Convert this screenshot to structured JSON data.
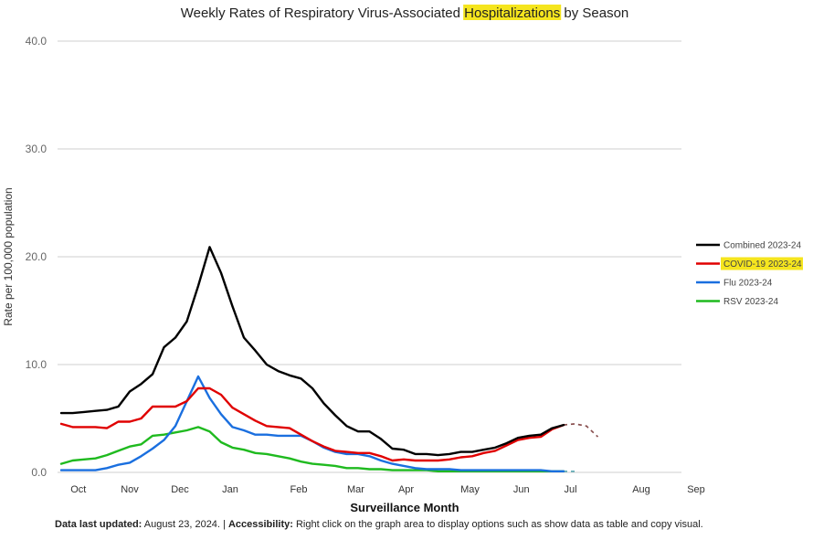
{
  "chart_data": {
    "type": "line",
    "title": {
      "before": "Weekly Rates of Respiratory Virus-Associated ",
      "highlight": "Hospitalizations",
      "after": " by Season"
    },
    "xlabel": "Surveillance Month",
    "ylabel": "Rate per 100,000 population",
    "ylim": [
      0,
      40
    ],
    "yticks": [
      "0.0",
      "10.0",
      "20.0",
      "30.0",
      "40.0"
    ],
    "ytick_values": [
      0,
      10,
      20,
      30,
      40
    ],
    "xlim": [
      0,
      51
    ],
    "month_ticks": [
      {
        "label": "Oct",
        "week": 1.5
      },
      {
        "label": "Nov",
        "week": 6
      },
      {
        "label": "Dec",
        "week": 10.4
      },
      {
        "label": "Jan",
        "week": 14.8
      },
      {
        "label": "Feb",
        "week": 20.8
      },
      {
        "label": "Mar",
        "week": 25.8
      },
      {
        "label": "Apr",
        "week": 30.2
      },
      {
        "label": "May",
        "week": 35.8
      },
      {
        "label": "Jun",
        "week": 40.3
      },
      {
        "label": "Jul",
        "week": 44.6
      },
      {
        "label": "Aug",
        "week": 50.8
      },
      {
        "label": "Sep",
        "week": 55.6
      }
    ],
    "grid": "horizontal",
    "legend_position": "right",
    "series": [
      {
        "name": "Combined 2023-24",
        "color": "#000000",
        "values": [
          5.5,
          5.5,
          5.6,
          5.7,
          5.8,
          6.1,
          7.5,
          8.2,
          9.1,
          11.6,
          12.5,
          14.0,
          17.3,
          20.9,
          18.5,
          15.4,
          12.5,
          11.3,
          10.0,
          9.4,
          9.0,
          8.7,
          7.8,
          6.4,
          5.3,
          4.3,
          3.8,
          3.8,
          3.1,
          2.2,
          2.1,
          1.7,
          1.7,
          1.6,
          1.7,
          1.9,
          1.9,
          2.1,
          2.3,
          2.7,
          3.2,
          3.4,
          3.5,
          4.1,
          4.4
        ],
        "projected": [
          4.4,
          4.5,
          4.3,
          3.3
        ]
      },
      {
        "name": "COVID-19 2023-24",
        "color": "#e00000",
        "highlight": true,
        "values": [
          4.5,
          4.2,
          4.2,
          4.2,
          4.1,
          4.7,
          4.7,
          5.0,
          6.1,
          6.1,
          6.1,
          6.6,
          7.8,
          7.8,
          7.2,
          6.0,
          5.4,
          4.8,
          4.3,
          4.2,
          4.1,
          3.5,
          2.9,
          2.4,
          2.0,
          1.9,
          1.8,
          1.8,
          1.5,
          1.1,
          1.2,
          1.1,
          1.1,
          1.1,
          1.2,
          1.4,
          1.5,
          1.8,
          2.0,
          2.5,
          3.0,
          3.2,
          3.3,
          4.0,
          4.4
        ],
        "projected": [
          4.4,
          4.5,
          4.3,
          3.3
        ]
      },
      {
        "name": "Flu 2023-24",
        "color": "#1a6fdf",
        "values": [
          0.2,
          0.2,
          0.2,
          0.2,
          0.4,
          0.7,
          0.9,
          1.5,
          2.2,
          3.0,
          4.3,
          6.6,
          8.9,
          6.9,
          5.4,
          4.2,
          3.9,
          3.5,
          3.5,
          3.4,
          3.4,
          3.4,
          2.9,
          2.3,
          1.9,
          1.7,
          1.7,
          1.5,
          1.1,
          0.8,
          0.6,
          0.4,
          0.3,
          0.3,
          0.3,
          0.2,
          0.2,
          0.2,
          0.2,
          0.2,
          0.2,
          0.2,
          0.2,
          0.1,
          0.1
        ],
        "projected": [
          0.1,
          0.1
        ]
      },
      {
        "name": "RSV 2023-24",
        "color": "#1fba1f",
        "values": [
          0.8,
          1.1,
          1.2,
          1.3,
          1.6,
          2.0,
          2.4,
          2.6,
          3.4,
          3.5,
          3.7,
          3.9,
          4.2,
          3.8,
          2.8,
          2.3,
          2.1,
          1.8,
          1.7,
          1.5,
          1.3,
          1.0,
          0.8,
          0.7,
          0.6,
          0.4,
          0.4,
          0.3,
          0.3,
          0.2,
          0.2,
          0.2,
          0.2,
          0.1,
          0.1,
          0.1,
          0.1,
          0.1,
          0.1,
          0.1,
          0.1,
          0.1,
          0.1,
          0.1,
          0.1
        ],
        "projected": [
          0.1,
          0.1
        ]
      }
    ]
  },
  "footnote": {
    "updated_label": "Data last updated:",
    "updated_value": " August 23, 2024. | ",
    "accessibility_label": "Accessibility:",
    "accessibility_text": " Right click on the graph area to display options such as show data as table and copy visual."
  }
}
